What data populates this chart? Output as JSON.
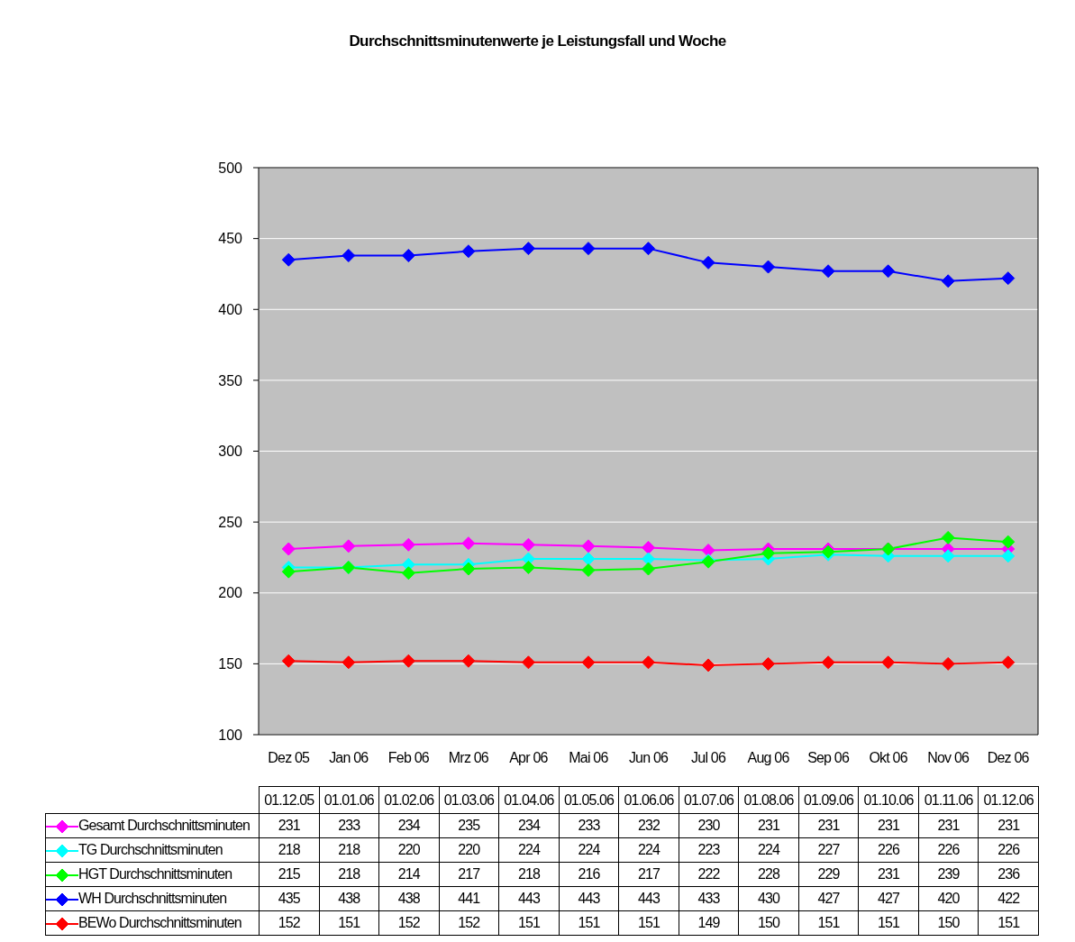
{
  "chart_data": {
    "type": "line",
    "title": "Durchschnittsminutenwerte je Leistungsfall und Woche",
    "categories": [
      "Dez 05",
      "Jan 06",
      "Feb 06",
      "Mrz 06",
      "Apr 06",
      "Mai 06",
      "Jun 06",
      "Jul 06",
      "Aug 06",
      "Sep 06",
      "Okt 06",
      "Nov 06",
      "Dez 06"
    ],
    "series": [
      {
        "name": "Gesamt Durchschnittsminuten",
        "color": "#ff00ff",
        "values": [
          231,
          233,
          234,
          235,
          234,
          233,
          232,
          230,
          231,
          231,
          231,
          231,
          231
        ]
      },
      {
        "name": "TG Durchschnittsminuten",
        "color": "#00ffff",
        "values": [
          218,
          218,
          220,
          220,
          224,
          224,
          224,
          223,
          224,
          227,
          226,
          226,
          226
        ]
      },
      {
        "name": "HGT Durchschnittsminuten",
        "color": "#00ff00",
        "values": [
          215,
          218,
          214,
          217,
          218,
          216,
          217,
          222,
          228,
          229,
          231,
          239,
          236
        ]
      },
      {
        "name": "WH Durchschnittsminuten",
        "color": "#0000ff",
        "values": [
          435,
          438,
          438,
          441,
          443,
          443,
          443,
          433,
          430,
          427,
          427,
          420,
          422
        ]
      },
      {
        "name": "BEWo Durchschnittsminuten",
        "color": "#ff0000",
        "values": [
          152,
          151,
          152,
          152,
          151,
          151,
          151,
          149,
          150,
          151,
          151,
          150,
          151
        ]
      }
    ],
    "annotations": [
      "01.12.05",
      "01.01.06",
      "01.02.06",
      "01.03.06",
      "01.04.06",
      "01.05.06",
      "01.06.06",
      "01.07.06",
      "01.08.06",
      "01.09.06",
      "01.10.06",
      "01.11.06",
      "01.12.06"
    ],
    "ylim": [
      100,
      500
    ],
    "yticks": [
      100,
      150,
      200,
      250,
      300,
      350,
      400,
      450,
      500
    ],
    "grid": "y",
    "legend": "bottom",
    "marker": "diamond",
    "line_style": "solid",
    "data_labels": true
  }
}
